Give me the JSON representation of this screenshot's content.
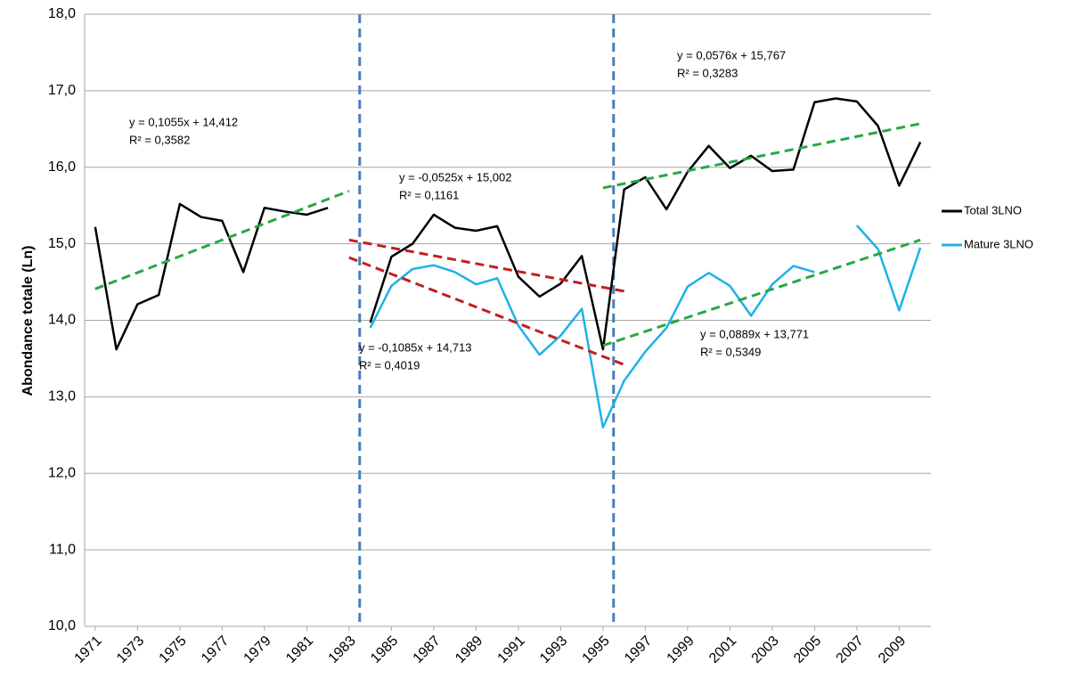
{
  "chart_data": {
    "type": "line",
    "y_label": "Abondance totale (Ln)",
    "x": [
      1971,
      1972,
      1973,
      1974,
      1975,
      1976,
      1977,
      1978,
      1979,
      1980,
      1981,
      1982,
      1983,
      1984,
      1985,
      1986,
      1987,
      1988,
      1989,
      1990,
      1991,
      1992,
      1993,
      1994,
      1995,
      1996,
      1997,
      1998,
      1999,
      2000,
      2001,
      2002,
      2003,
      2004,
      2005,
      2006,
      2007,
      2008,
      2009,
      2010
    ],
    "xlim": [
      1970.5,
      2010.5
    ],
    "xticks": [
      1971,
      1973,
      1975,
      1977,
      1979,
      1981,
      1983,
      1985,
      1987,
      1989,
      1991,
      1993,
      1995,
      1997,
      1999,
      2001,
      2003,
      2005,
      2007,
      2009
    ],
    "ylim": [
      10,
      18
    ],
    "yticks": [
      {
        "value": 10,
        "label": "10,0"
      },
      {
        "value": 11,
        "label": "11,0"
      },
      {
        "value": 12,
        "label": "12,0"
      },
      {
        "value": 13,
        "label": "13,0"
      },
      {
        "value": 14,
        "label": "14,0"
      },
      {
        "value": 15,
        "label": "15,0"
      },
      {
        "value": 16,
        "label": "16,0"
      },
      {
        "value": 17,
        "label": "17,0"
      },
      {
        "value": 18,
        "label": "18,0"
      }
    ],
    "grid": true,
    "legend": "right",
    "series": [
      {
        "name": "Total 3LNO",
        "color": "#000000",
        "values": [
          15.22,
          13.62,
          14.21,
          14.33,
          15.52,
          15.35,
          15.3,
          14.63,
          15.47,
          15.42,
          15.38,
          15.47,
          null,
          13.97,
          14.83,
          15.0,
          15.38,
          15.21,
          15.17,
          15.23,
          14.57,
          14.31,
          14.48,
          14.84,
          13.62,
          15.71,
          15.87,
          15.45,
          15.94,
          16.28,
          15.99,
          16.15,
          15.95,
          15.97,
          16.85,
          16.9,
          16.86,
          16.54,
          15.76,
          16.33
        ]
      },
      {
        "name": "Mature 3LNO",
        "color": "#1eb1ea",
        "values": [
          null,
          null,
          null,
          null,
          null,
          null,
          null,
          null,
          null,
          null,
          null,
          null,
          null,
          13.9,
          14.45,
          14.67,
          14.72,
          14.63,
          14.47,
          14.55,
          13.93,
          13.55,
          13.8,
          14.15,
          12.6,
          13.21,
          13.59,
          13.9,
          14.44,
          14.62,
          14.45,
          14.06,
          14.47,
          14.71,
          14.63,
          null,
          15.24,
          14.93,
          14.13,
          14.95
        ]
      }
    ],
    "trendlines": [
      {
        "color": "#28a745",
        "x": [
          1971,
          1983
        ],
        "values": [
          14.41,
          15.69
        ]
      },
      {
        "color": "#c0201e",
        "x": [
          1983,
          1996
        ],
        "values": [
          15.05,
          14.38
        ]
      },
      {
        "color": "#c0201e",
        "x": [
          1983,
          1996
        ],
        "values": [
          14.82,
          13.42
        ]
      },
      {
        "color": "#28a745",
        "x": [
          1995,
          2010
        ],
        "values": [
          15.73,
          16.57
        ]
      },
      {
        "color": "#28a745",
        "x": [
          1995,
          2010
        ],
        "values": [
          13.67,
          15.05
        ]
      }
    ],
    "breaks": [
      {
        "x": 1983.5,
        "color": "#4a7ebb"
      },
      {
        "x": 1995.5,
        "color": "#4a7ebb"
      }
    ],
    "annotations": [
      [
        "y = 0,1055x + 14,412",
        "R² = 0,3582"
      ],
      [
        "y = -0,0525x + 15,002",
        "R² = 0,1161"
      ],
      [
        "y = -0,1085x + 14,713",
        "R² = 0,4019"
      ],
      [
        "y = 0,0576x + 15,767",
        "R² = 0,3283"
      ],
      [
        "y = 0,0889x + 13,771",
        "R² = 0,5349"
      ]
    ]
  }
}
